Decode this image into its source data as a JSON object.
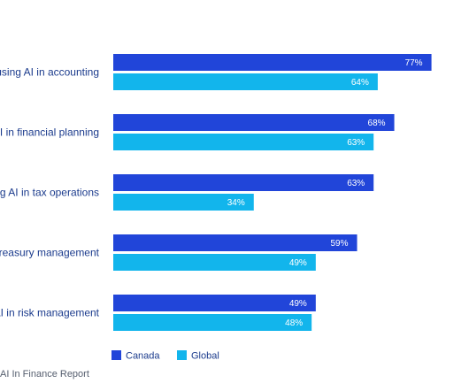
{
  "chart_data": {
    "type": "bar",
    "orientation": "horizontal",
    "categories": [
      "using AI in accounting",
      "AI in financial planning",
      "ng AI in tax operations",
      "treasury management",
      "AI in risk management"
    ],
    "series": [
      {
        "name": "Canada",
        "color": "#2145d9",
        "values": [
          77,
          68,
          63,
          59,
          49
        ],
        "labels": [
          "77%",
          "68%",
          "63%",
          "59%",
          "49%"
        ]
      },
      {
        "name": "Global",
        "color": "#12b5ec",
        "values": [
          64,
          63,
          34,
          49,
          48
        ],
        "labels": [
          "64%",
          "63%",
          "34%",
          "49%",
          "48%"
        ]
      }
    ],
    "xlim": [
      0,
      100
    ],
    "value_suffix": "%",
    "legend": "bottom-left",
    "grid": false
  },
  "source": "AI In Finance Report",
  "colors": {
    "label_text": "#1a3a8c",
    "source_text": "#555e6e",
    "bar_label_text": "#ffffff"
  }
}
